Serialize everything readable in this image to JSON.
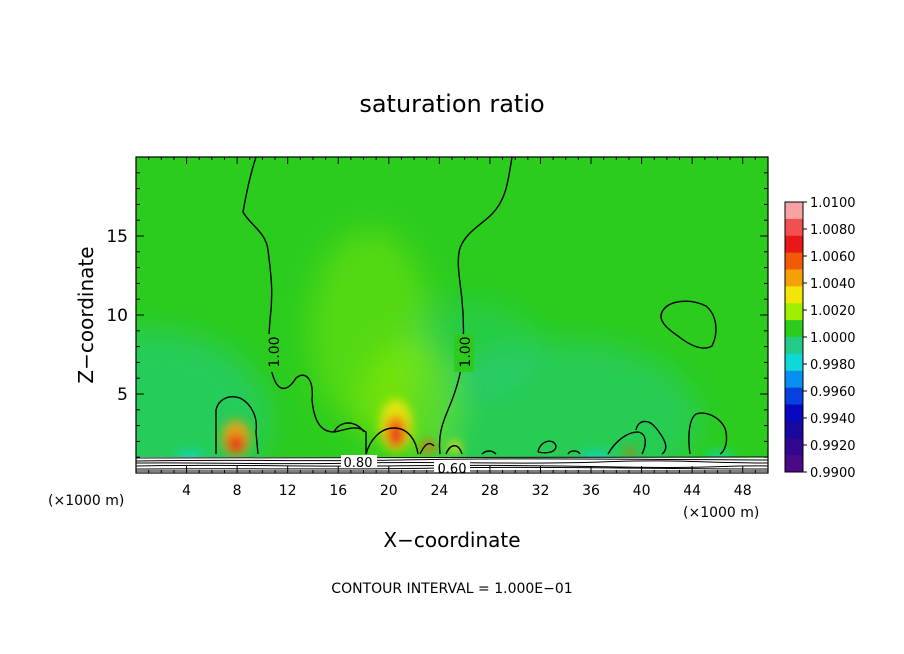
{
  "chart_data": {
    "type": "heatmap",
    "title": "saturation ratio",
    "xlabel": "X−coordinate",
    "ylabel": "Z−coordinate",
    "x_unit_left": "(×1000 m)",
    "x_unit_right": "(×1000 m)",
    "xlim": [
      0,
      50
    ],
    "ylim": [
      0,
      20
    ],
    "x_ticks": [
      "4",
      "8",
      "12",
      "16",
      "20",
      "24",
      "28",
      "32",
      "36",
      "40",
      "44",
      "48"
    ],
    "y_ticks": [
      "5",
      "10",
      "15"
    ],
    "contour_labels": [
      "1.00",
      "1.00",
      "0.80",
      "0.60"
    ],
    "footer": "CONTOUR INTERVAL = 1.000E−01",
    "colorbar": {
      "labels": [
        "1.0100",
        "1.0080",
        "1.0060",
        "1.0040",
        "1.0020",
        "1.0000",
        "0.9980",
        "0.9960",
        "0.9940",
        "0.9920",
        "0.9900"
      ],
      "colors": [
        "#f7a3a3",
        "#f05050",
        "#e81818",
        "#f25a08",
        "#f6a008",
        "#f2e608",
        "#9ef000",
        "#2ccc1e",
        "#22cc88",
        "#10d8d8",
        "#0890f0",
        "#0840e0",
        "#0808c0",
        "#1808a0",
        "#300890",
        "#4a0a88"
      ]
    },
    "background_color": "#2ccc1e"
  }
}
